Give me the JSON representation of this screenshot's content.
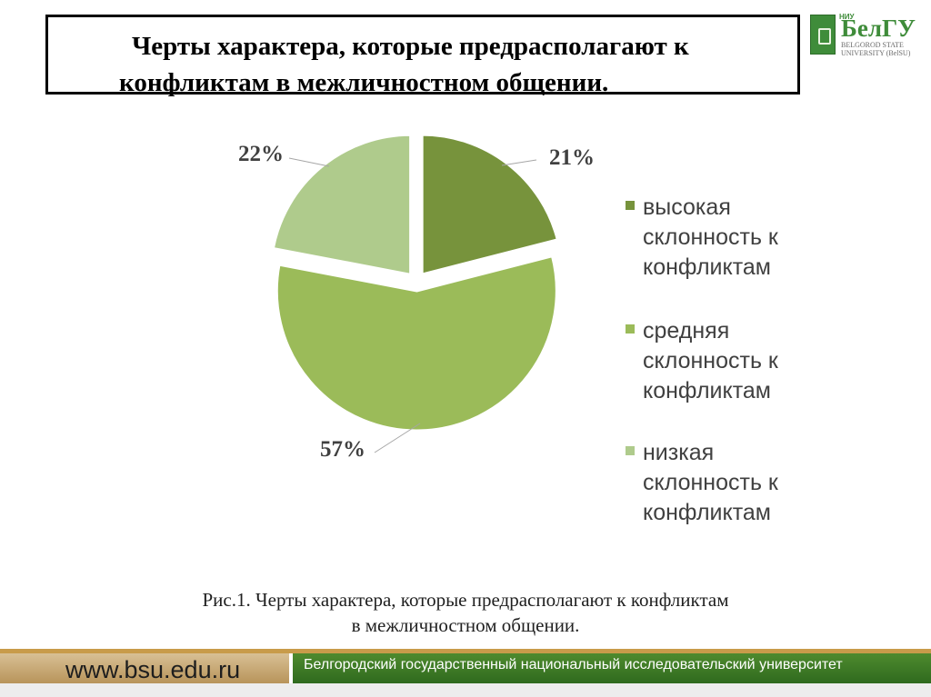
{
  "title_line1": "Черты характера, которые предрасполагают к",
  "title_line2": "конфликтам в межличностном общении.",
  "logo": {
    "brand": "БелГУ",
    "brand_prefix": "НИУ",
    "university_line1": "BELGOROD STATE",
    "university_line2": "UNIVERSITY (BelSU)"
  },
  "chart_data": {
    "type": "pie",
    "slices": [
      {
        "label": "высокая склонность к конфликтам",
        "value": 21,
        "display": "21%",
        "color": "#77933c"
      },
      {
        "label": "средняя склонность к конфликтам",
        "value": 57,
        "display": "57%",
        "color": "#9bbb59"
      },
      {
        "label": "низкая склонность к конфликтам",
        "value": 22,
        "display": "22%",
        "color": "#afcb8c"
      }
    ],
    "legend": [
      {
        "lines": [
          "высокая",
          "склонность к",
          "конфликтам"
        ],
        "color": "#77933c"
      },
      {
        "lines": [
          "средняя",
          "склонность к",
          "конфликтам"
        ],
        "color": "#9bbb59"
      },
      {
        "lines": [
          "низкая",
          "склонность к",
          "конфликтам"
        ],
        "color": "#afcb8c"
      }
    ],
    "legend_position": "right",
    "exploded": true
  },
  "caption_line1": "Рис.1. Черты характера, которые предрасполагают к конфликтам",
  "caption_line2": "в межличностном общении.",
  "footer": {
    "url": "www.bsu.edu.ru",
    "university_name": "Белгородский государственный национальный исследовательский университет"
  }
}
